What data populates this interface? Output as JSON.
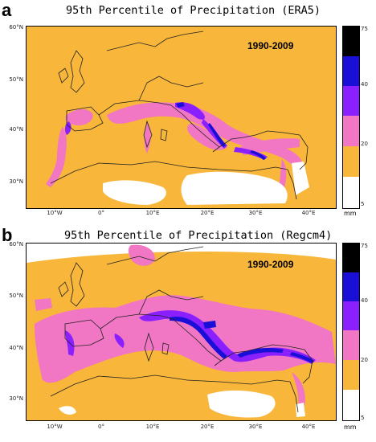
{
  "colors": {
    "white": "#ffffff",
    "orange": "#f8b63a",
    "pink": "#f176c4",
    "violet": "#8a1fff",
    "blue": "#1a0fd6",
    "black": "#000000",
    "coast": "#222222"
  },
  "legend": {
    "ticks": [
      "5",
      "20",
      "40",
      "75"
    ],
    "unit": "mm",
    "bands": [
      "black",
      "blue",
      "violet",
      "pink",
      "orange",
      "white"
    ]
  },
  "axes": {
    "lat_labels": [
      "60°N",
      "50°N",
      "40°N",
      "30°N"
    ],
    "lon_labels": [
      "10°W",
      "0°",
      "10°E",
      "20°E",
      "30°E",
      "40°E"
    ]
  },
  "panels": [
    {
      "letter": "a",
      "title": "95th Percentile of Precipitation (ERA5)",
      "period": "1990-2009"
    },
    {
      "letter": "b",
      "title": "95th Percentile of Precipitation (Regcm4)",
      "period": "1990-2009"
    }
  ]
}
